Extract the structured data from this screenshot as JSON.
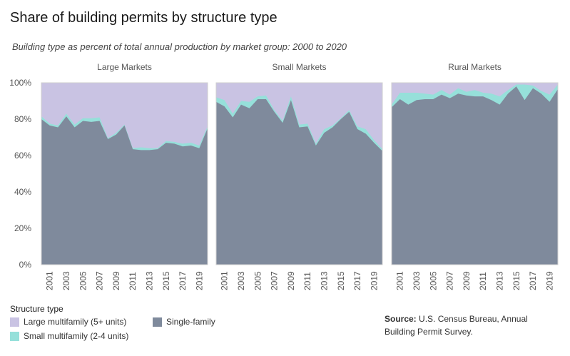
{
  "title": "Share of building permits by structure type",
  "subtitle": "Building type as percent of total annual production by market group: 2000 to 2020",
  "legend": {
    "title": "Structure type",
    "items": [
      {
        "label": "Large multifamily (5+ units)",
        "color": "#c9c3e3"
      },
      {
        "label": "Single-family",
        "color": "#7f8a9c"
      },
      {
        "label": "Small multifamily (2-4 units)",
        "color": "#96e0da"
      }
    ]
  },
  "source": {
    "label": "Source:",
    "text": "U.S. Census Bureau, Annual Building Permit Survey."
  },
  "chart_data": {
    "type": "area",
    "stacked": true,
    "x": [
      2000,
      2001,
      2002,
      2003,
      2004,
      2005,
      2006,
      2007,
      2008,
      2009,
      2010,
      2011,
      2012,
      2013,
      2014,
      2015,
      2016,
      2017,
      2018,
      2019,
      2020
    ],
    "x_tick_labels": [
      "2001",
      "2003",
      "2005",
      "2007",
      "2009",
      "2011",
      "2013",
      "2015",
      "2017",
      "2019"
    ],
    "y_ticks": [
      "0%",
      "20%",
      "40%",
      "60%",
      "80%",
      "100%"
    ],
    "ylim": [
      0,
      100
    ],
    "colors": {
      "single": "#7f8a9c",
      "small": "#96e0da",
      "large": "#c9c3e3"
    },
    "panels": [
      {
        "name": "Large Markets",
        "single_family": [
          80,
          76.5,
          75.5,
          81.5,
          75.5,
          79,
          78.5,
          79,
          69,
          71.5,
          76.5,
          63.5,
          63,
          63,
          63.5,
          67,
          66.5,
          65,
          65.5,
          64,
          75
        ],
        "small_multifamily_top": [
          81.5,
          77.5,
          76.5,
          83,
          77,
          80.5,
          80.5,
          81,
          69.5,
          72.5,
          77,
          64,
          64.5,
          64,
          64,
          68,
          67.5,
          66.5,
          67,
          65.5,
          76
        ]
      },
      {
        "name": "Small Markets",
        "single_family": [
          89.5,
          87,
          81,
          88,
          86,
          91,
          91,
          84,
          78,
          90.5,
          75.5,
          76,
          65.5,
          72.5,
          75.5,
          80,
          84,
          74.5,
          72,
          67,
          62.5
        ],
        "small_multifamily_top": [
          92,
          90.5,
          83,
          90,
          89.5,
          92.5,
          93,
          85,
          79,
          92.5,
          77,
          77.5,
          66.5,
          74.5,
          76.5,
          80.5,
          85,
          76,
          74.5,
          68.5,
          63.5
        ]
      },
      {
        "name": "Rural Markets",
        "single_family": [
          86.5,
          91,
          88,
          90.5,
          91,
          91,
          93.5,
          91.5,
          94,
          93,
          92.5,
          92.5,
          90.5,
          88,
          94,
          98,
          90.5,
          97,
          94,
          89.5,
          96.5
        ],
        "small_multifamily_top": [
          88,
          94.5,
          94.5,
          94.5,
          94,
          93.5,
          96,
          93.5,
          97,
          95,
          96,
          94.5,
          94,
          92.5,
          96,
          99,
          99,
          98.5,
          95.5,
          93.5,
          99
        ]
      }
    ]
  }
}
